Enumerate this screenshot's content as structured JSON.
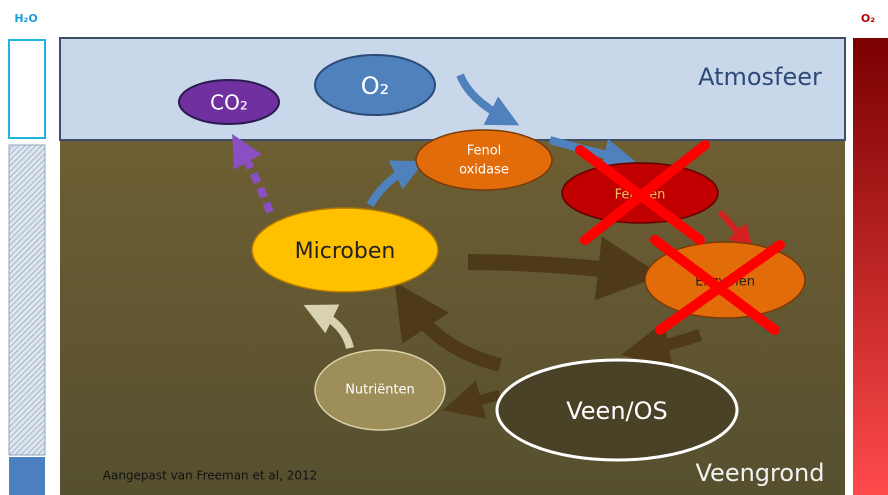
{
  "side_labels": {
    "water": "H₂O",
    "oxygen": "O₂"
  },
  "atmosphere": "Atmosfeer",
  "soil": "Veengrond",
  "credit": "Aangepast van Freeman et al, 2012",
  "nodes": [
    {
      "label": "CO₂"
    },
    {
      "label": "O₂"
    },
    {
      "lines": [
        "Fenol",
        "oxidase"
      ]
    },
    {
      "label": "Fenolen"
    },
    {
      "label": "Microben"
    },
    {
      "label": "Enzymen"
    },
    {
      "label": "Nutriënten"
    },
    {
      "label": "Veen/OS"
    }
  ]
}
